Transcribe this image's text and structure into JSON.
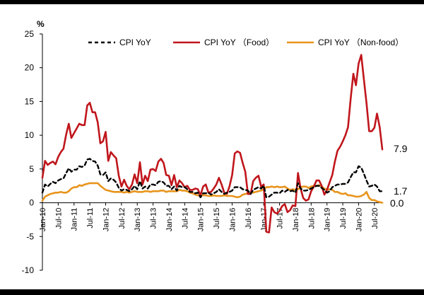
{
  "chart_data": {
    "type": "line",
    "unit_label": "%",
    "ylim": [
      -10,
      25
    ],
    "y_ticks": [
      -10,
      -5,
      0,
      5,
      10,
      15,
      20,
      25
    ],
    "x_start": "2010-01",
    "n_months": 130,
    "x_tick_labels": [
      "Jan-10",
      "Jul-10",
      "Jan-11",
      "Jul-11",
      "Jan-12",
      "Jul-12",
      "Jan-13",
      "Jul-13",
      "Jan-14",
      "Jul-14",
      "Jan-15",
      "Jul-15",
      "Jan-16",
      "Jul-16",
      "Jan-17",
      "Jul-17",
      "Jan-18",
      "Jul-18",
      "Jan-19",
      "Jul-19",
      "Jan-20",
      "Jul-20"
    ],
    "legend": {
      "position": "top"
    },
    "series": [
      {
        "name": "CPI YoY",
        "color": "#000000",
        "style": "dashed",
        "end_label": "1.7",
        "values": [
          1.5,
          2.7,
          2.4,
          2.8,
          3.1,
          2.9,
          3.3,
          3.5,
          3.6,
          4.4,
          5.1,
          4.6,
          4.9,
          4.9,
          5.4,
          5.3,
          5.5,
          6.4,
          6.5,
          6.2,
          6.1,
          5.5,
          4.2,
          4.1,
          4.5,
          3.2,
          3.6,
          3.4,
          3.0,
          2.2,
          1.8,
          2.0,
          1.9,
          1.7,
          2.0,
          2.5,
          2.0,
          3.2,
          2.1,
          2.4,
          2.1,
          2.7,
          2.7,
          2.6,
          3.1,
          3.2,
          3.0,
          2.5,
          2.5,
          2.0,
          2.4,
          1.8,
          2.5,
          2.3,
          2.3,
          2.0,
          1.6,
          1.6,
          1.4,
          1.5,
          0.8,
          1.4,
          1.4,
          1.5,
          1.2,
          1.4,
          1.6,
          2.0,
          1.6,
          1.3,
          1.5,
          1.6,
          1.8,
          2.3,
          2.3,
          2.3,
          2.0,
          1.9,
          1.8,
          1.3,
          1.9,
          2.1,
          2.3,
          2.1,
          2.5,
          0.8,
          0.9,
          1.2,
          1.5,
          1.5,
          1.4,
          1.8,
          1.6,
          1.9,
          1.7,
          1.8,
          1.5,
          2.9,
          2.1,
          1.8,
          1.8,
          1.9,
          2.1,
          2.3,
          2.5,
          2.5,
          2.2,
          1.9,
          1.5,
          1.7,
          2.3,
          2.5,
          2.7,
          2.7,
          2.8,
          2.8,
          3.0,
          3.8,
          4.5,
          4.5,
          5.4,
          5.2,
          4.3,
          3.3,
          2.4,
          2.5,
          2.7,
          2.4,
          1.7,
          1.7
        ]
      },
      {
        "name": "CPI YoY （Food）",
        "color": "#c0161c",
        "style": "solid",
        "end_label": "7.9",
        "values": [
          3.7,
          6.2,
          5.6,
          5.9,
          6.1,
          5.7,
          6.8,
          7.5,
          8.0,
          10.1,
          11.7,
          9.6,
          10.3,
          11.0,
          11.7,
          11.5,
          11.5,
          14.4,
          14.8,
          13.4,
          13.4,
          11.9,
          8.8,
          9.1,
          10.5,
          6.2,
          7.5,
          7.0,
          6.6,
          4.0,
          2.4,
          3.4,
          2.5,
          2.0,
          2.7,
          4.2,
          2.9,
          6.0,
          2.7,
          4.0,
          3.2,
          4.9,
          5.0,
          4.7,
          6.1,
          6.5,
          5.9,
          4.1,
          4.0,
          2.6,
          4.1,
          2.3,
          3.3,
          2.9,
          2.3,
          2.5,
          1.9,
          1.9,
          2.1,
          2.0,
          1.1,
          2.4,
          2.7,
          1.5,
          1.6,
          2.1,
          2.7,
          3.7,
          2.7,
          1.5,
          1.3,
          2.4,
          4.1,
          7.3,
          7.6,
          7.4,
          5.9,
          4.6,
          1.3,
          1.3,
          3.2,
          3.7,
          4.0,
          2.4,
          2.7,
          -4.3,
          -4.4,
          -0.7,
          -1.4,
          -1.6,
          -1.2,
          -0.5,
          -0.2,
          -1.4,
          -1.1,
          -0.4,
          -0.5,
          4.4,
          2.1,
          0.7,
          0.3,
          0.5,
          1.7,
          2.4,
          3.3,
          3.3,
          2.5,
          1.2,
          1.9,
          3.0,
          4.1,
          6.1,
          7.7,
          8.3,
          9.1,
          10.0,
          11.2,
          15.5,
          19.1,
          17.4,
          20.6,
          21.9,
          18.3,
          14.8,
          10.6,
          10.6,
          11.1,
          13.2,
          11.2,
          7.9
        ]
      },
      {
        "name": "CPI YoY （Non-food）",
        "color": "#e8941c",
        "style": "solid",
        "end_label": "0.0",
        "values": [
          0.3,
          0.9,
          1.1,
          1.3,
          1.4,
          1.5,
          1.5,
          1.6,
          1.5,
          1.5,
          1.7,
          2.1,
          2.3,
          2.3,
          2.6,
          2.5,
          2.7,
          2.8,
          2.9,
          2.9,
          2.9,
          2.9,
          2.5,
          2.2,
          1.9,
          1.8,
          1.7,
          1.6,
          1.6,
          1.6,
          1.6,
          1.5,
          1.6,
          1.5,
          1.6,
          1.7,
          1.6,
          1.6,
          1.6,
          1.7,
          1.7,
          1.6,
          1.7,
          1.7,
          1.7,
          1.8,
          1.8,
          1.6,
          1.7,
          1.7,
          1.7,
          1.7,
          1.9,
          1.8,
          1.8,
          1.7,
          1.5,
          1.4,
          1.2,
          1.1,
          1.1,
          1.1,
          1.1,
          1.0,
          1.0,
          1.1,
          1.0,
          1.0,
          1.0,
          1.1,
          1.0,
          1.0,
          1.0,
          0.9,
          0.8,
          0.9,
          1.2,
          1.3,
          1.4,
          1.5,
          1.5,
          1.6,
          1.7,
          1.8,
          2.0,
          2.3,
          2.3,
          2.4,
          2.3,
          2.4,
          2.3,
          2.3,
          2.4,
          2.1,
          1.9,
          2.0,
          1.9,
          2.0,
          2.3,
          2.4,
          2.4,
          2.2,
          2.4,
          2.5,
          2.5,
          2.6,
          2.4,
          2.1,
          1.9,
          2.0,
          1.9,
          1.6,
          1.6,
          1.4,
          1.3,
          1.4,
          1.1,
          1.1,
          1.0,
          0.9,
          0.9,
          1.0,
          1.2,
          1.6,
          0.7,
          0.4,
          0.4,
          0.2,
          0.1,
          0.0
        ]
      }
    ]
  }
}
